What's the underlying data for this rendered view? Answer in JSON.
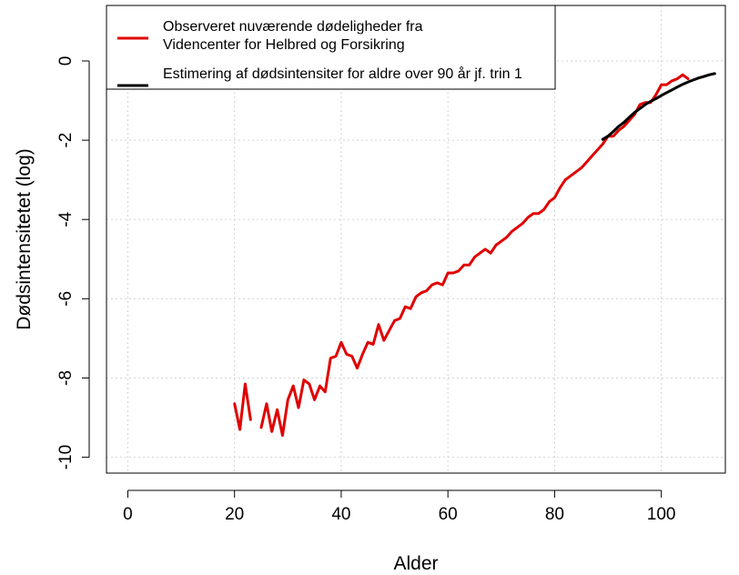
{
  "chart_data": {
    "type": "line",
    "title": "",
    "xlabel": "Alder",
    "ylabel": "Dødsintensitetet (log)",
    "xlim": [
      -4,
      112
    ],
    "ylim": [
      -10.4,
      1.4
    ],
    "xticks": [
      0,
      20,
      40,
      60,
      80,
      100
    ],
    "yticks": [
      -10,
      -8,
      -6,
      -4,
      -2,
      0
    ],
    "grid": true,
    "legend_position": "top-left",
    "series": [
      {
        "name": "Observeret nuværende dødeligheder fra Videncenter for Helbred og Forsikring",
        "legend_lines": [
          "Observeret nuværende dødeligheder fra",
          "Videncenter for Helbred og Forsikring"
        ],
        "color": "#e00000",
        "x": [
          20,
          21,
          22,
          23,
          null,
          25,
          26,
          27,
          28,
          29,
          30,
          31,
          32,
          33,
          34,
          35,
          36,
          37,
          38,
          39,
          40,
          41,
          42,
          43,
          44,
          45,
          46,
          47,
          48,
          49,
          50,
          51,
          52,
          53,
          54,
          55,
          56,
          57,
          58,
          59,
          60,
          61,
          62,
          63,
          64,
          65,
          66,
          67,
          68,
          69,
          70,
          71,
          72,
          73,
          74,
          75,
          76,
          77,
          78,
          79,
          80,
          81,
          82,
          83,
          84,
          85,
          86,
          87,
          88,
          89,
          90,
          91,
          92,
          93,
          94,
          95,
          96,
          97,
          98,
          99,
          100,
          101,
          102,
          103,
          104,
          105
        ],
        "y": [
          -8.65,
          -9.3,
          -8.15,
          -9.05,
          null,
          -9.25,
          -8.65,
          -9.35,
          -8.8,
          -9.45,
          -8.55,
          -8.2,
          -8.75,
          -8.05,
          -8.15,
          -8.55,
          -8.2,
          -8.35,
          -7.5,
          -7.45,
          -7.1,
          -7.4,
          -7.45,
          -7.75,
          -7.4,
          -7.1,
          -7.15,
          -6.65,
          -7.05,
          -6.8,
          -6.55,
          -6.5,
          -6.2,
          -6.25,
          -5.95,
          -5.85,
          -5.8,
          -5.65,
          -5.6,
          -5.65,
          -5.35,
          -5.35,
          -5.3,
          -5.15,
          -5.15,
          -4.95,
          -4.85,
          -4.75,
          -4.85,
          -4.65,
          -4.55,
          -4.45,
          -4.3,
          -4.2,
          -4.1,
          -3.95,
          -3.85,
          -3.85,
          -3.75,
          -3.55,
          -3.45,
          -3.2,
          -3.0,
          -2.9,
          -2.8,
          -2.7,
          -2.55,
          -2.4,
          -2.25,
          -2.1,
          -1.9,
          -1.9,
          -1.75,
          -1.65,
          -1.5,
          -1.35,
          -1.1,
          -1.05,
          -1.05,
          -0.85,
          -0.6,
          -0.6,
          -0.5,
          -0.45,
          -0.35,
          -0.45
        ]
      },
      {
        "name": "Estimering af dødsintensiter for aldre over 90 år jf. trin 1",
        "legend_lines": [
          "Estimering af dødsintensiter for aldre over 90 år jf. trin 1"
        ],
        "color": "#000000",
        "x": [
          89,
          90,
          91,
          92,
          93,
          94,
          95,
          96,
          97,
          98,
          99,
          100,
          101,
          102,
          103,
          104,
          105,
          106,
          107,
          108,
          109,
          110
        ],
        "y": [
          -1.98,
          -1.9,
          -1.78,
          -1.65,
          -1.55,
          -1.42,
          -1.3,
          -1.2,
          -1.1,
          -1.02,
          -0.95,
          -0.87,
          -0.8,
          -0.73,
          -0.66,
          -0.59,
          -0.53,
          -0.48,
          -0.43,
          -0.39,
          -0.35,
          -0.32
        ]
      }
    ]
  }
}
